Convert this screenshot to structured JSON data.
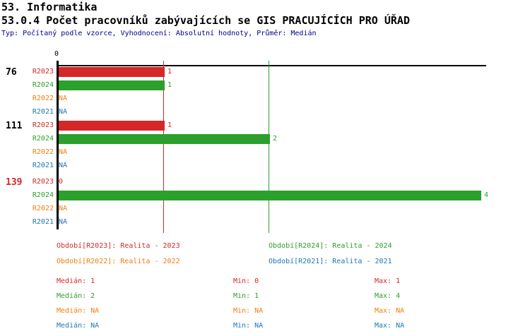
{
  "header": {
    "category": "53. Informatika",
    "title": "53.0.4 Počet pracovníků zabývajících se GIS PRACUJÍCÍCH PRO ÚŘAD",
    "subtitle": "Typ: Počítaný podle vzorce, Vyhodnocení: Absolutní hodnoty, Průměr: Medián",
    "subtitle_color": "#00008b"
  },
  "chart_data": {
    "type": "bar",
    "orientation": "horizontal",
    "x_axis": {
      "origin_label": "0",
      "min": 0,
      "max": 4,
      "grid": false
    },
    "series_legend": [
      {
        "id": "R2023",
        "label": "Období[R2023]: Realita - 2023",
        "color": "#d62728"
      },
      {
        "id": "R2024",
        "label": "Období[R2024]: Realita - 2024",
        "color": "#2ca02c"
      },
      {
        "id": "R2022",
        "label": "Období[R2022]: Realita - 2022",
        "color": "#ee7f0e"
      },
      {
        "id": "R2021",
        "label": "Období[R2021]: Realita - 2021",
        "color": "#1f77b4"
      }
    ],
    "reference_lines": [
      {
        "label": "Medián R2023",
        "value": 1,
        "color": "#d62728"
      },
      {
        "label": "Medián R2024",
        "value": 2,
        "color": "#2ca02c"
      }
    ],
    "groups": [
      {
        "label": "76",
        "label_color": "#000000",
        "rows": [
          {
            "series": "R2023",
            "value": 1,
            "display": "1"
          },
          {
            "series": "R2024",
            "value": 1,
            "display": "1"
          },
          {
            "series": "R2022",
            "value": null,
            "display": "NA"
          },
          {
            "series": "R2021",
            "value": null,
            "display": "NA"
          }
        ]
      },
      {
        "label": "111",
        "label_color": "#000000",
        "rows": [
          {
            "series": "R2023",
            "value": 1,
            "display": "1"
          },
          {
            "series": "R2024",
            "value": 2,
            "display": "2"
          },
          {
            "series": "R2022",
            "value": null,
            "display": "NA"
          },
          {
            "series": "R2021",
            "value": null,
            "display": "NA"
          }
        ]
      },
      {
        "label": "139",
        "label_color": "#d62728",
        "rows": [
          {
            "series": "R2023",
            "value": 0,
            "display": "0"
          },
          {
            "series": "R2024",
            "value": 4,
            "display": "4"
          },
          {
            "series": "R2022",
            "value": null,
            "display": "NA"
          },
          {
            "series": "R2021",
            "value": null,
            "display": "NA"
          }
        ]
      }
    ],
    "stats": [
      {
        "series": "R2023",
        "color": "#d62728",
        "median": "Medián: 1",
        "min": "Min: 0",
        "max": "Max: 1"
      },
      {
        "series": "R2024",
        "color": "#2ca02c",
        "median": "Medián: 2",
        "min": "Min: 1",
        "max": "Max: 4"
      },
      {
        "series": "R2022",
        "color": "#ee7f0e",
        "median": "Medián: NA",
        "min": "Min: NA",
        "max": "Max: NA"
      },
      {
        "series": "R2021",
        "color": "#1f77b4",
        "median": "Medián: NA",
        "min": "Min: NA",
        "max": "Max: NA"
      }
    ]
  }
}
